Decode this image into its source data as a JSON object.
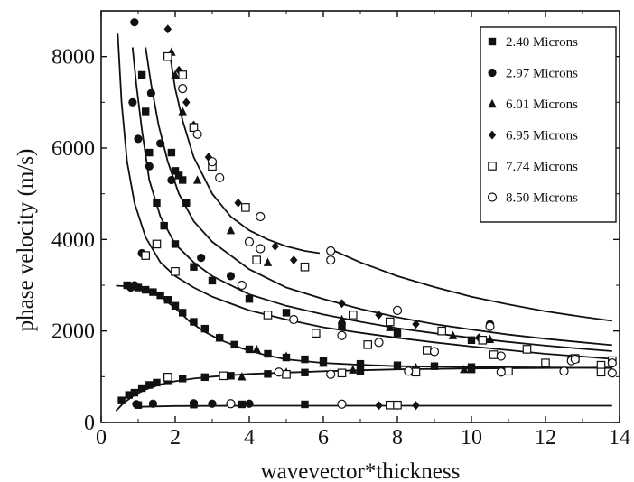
{
  "chart_data": {
    "type": "scatter",
    "title": "",
    "xlabel": "wavevector*thickness",
    "ylabel": "phase velocity (m/s)",
    "xlim": [
      0,
      14
    ],
    "ylim": [
      0,
      9000
    ],
    "xticks": [
      0,
      2,
      4,
      6,
      8,
      10,
      12,
      14
    ],
    "yticks": [
      0,
      2000,
      4000,
      6000,
      8000
    ],
    "grid": false,
    "legend_position": "top-right",
    "colors": {
      "ink": "#111111",
      "background": "#ffffff"
    },
    "legend": [
      {
        "name": "2.40 Microns",
        "marker": "filled-square"
      },
      {
        "name": "2.97 Microns",
        "marker": "filled-circle"
      },
      {
        "name": "6.01 Microns",
        "marker": "filled-triangle"
      },
      {
        "name": "6.95 Microns",
        "marker": "filled-diamond"
      },
      {
        "name": "7.74 Microns",
        "marker": "open-square"
      },
      {
        "name": "8.50 Microns",
        "marker": "open-circle"
      }
    ],
    "series": [
      {
        "name": "2.40 Microns",
        "marker": "filled-square",
        "points": [
          [
            0.55,
            480
          ],
          [
            0.75,
            600
          ],
          [
            0.9,
            650
          ],
          [
            1.1,
            750
          ],
          [
            1.3,
            820
          ],
          [
            1.5,
            870
          ],
          [
            1.8,
            920
          ],
          [
            2.2,
            960
          ],
          [
            2.8,
            990
          ],
          [
            3.5,
            1020
          ],
          [
            4.5,
            1060
          ],
          [
            5.5,
            1090
          ],
          [
            7,
            1120
          ],
          [
            8.5,
            1140
          ],
          [
            10,
            1160
          ],
          [
            0.7,
            3000
          ],
          [
            0.85,
            2980
          ],
          [
            1.0,
            2950
          ],
          [
            1.2,
            2900
          ],
          [
            1.4,
            2850
          ],
          [
            1.6,
            2780
          ],
          [
            1.8,
            2680
          ],
          [
            2.0,
            2550
          ],
          [
            2.2,
            2400
          ],
          [
            2.5,
            2200
          ],
          [
            2.8,
            2050
          ],
          [
            3.2,
            1850
          ],
          [
            3.6,
            1700
          ],
          [
            4.0,
            1600
          ],
          [
            4.5,
            1500
          ],
          [
            5,
            1420
          ],
          [
            5.5,
            1380
          ],
          [
            6,
            1340
          ],
          [
            7,
            1280
          ],
          [
            8,
            1250
          ],
          [
            9,
            1230
          ],
          [
            10,
            1210
          ],
          [
            1.1,
            7600
          ],
          [
            1.2,
            6800
          ],
          [
            1.3,
            5900
          ],
          [
            1.5,
            4800
          ],
          [
            1.7,
            4300
          ],
          [
            2.0,
            3900
          ],
          [
            2.5,
            3400
          ],
          [
            3.0,
            3100
          ],
          [
            4.0,
            2700
          ],
          [
            5.0,
            2400
          ],
          [
            6.5,
            2100
          ],
          [
            8,
            1950
          ],
          [
            10,
            1800
          ],
          [
            1.9,
            5900
          ],
          [
            2.0,
            5500
          ],
          [
            2.1,
            5400
          ],
          [
            2.2,
            5300
          ],
          [
            2.3,
            4800
          ],
          [
            1.0,
            380
          ],
          [
            2.5,
            390
          ],
          [
            3.8,
            395
          ],
          [
            5.5,
            395
          ]
        ]
      },
      {
        "name": "2.97 Microns",
        "marker": "filled-circle",
        "points": [
          [
            0.9,
            8750
          ],
          [
            1.35,
            7200
          ],
          [
            1.6,
            6100
          ],
          [
            1.9,
            5300
          ],
          [
            0.85,
            7000
          ],
          [
            1.0,
            6200
          ],
          [
            1.3,
            5600
          ],
          [
            1.1,
            3700
          ],
          [
            0.9,
            3000
          ],
          [
            0.8,
            2950
          ],
          [
            0.95,
            400
          ],
          [
            1.4,
            410
          ],
          [
            2.5,
            420
          ],
          [
            3,
            410
          ],
          [
            4,
            410
          ],
          [
            6.2,
            3750
          ],
          [
            8,
            2450
          ],
          [
            10.5,
            2150
          ],
          [
            12.7,
            1400
          ],
          [
            13.8,
            1350
          ],
          [
            2.7,
            3600
          ],
          [
            3.5,
            3200
          ]
        ]
      },
      {
        "name": "6.01 Microns",
        "marker": "filled-triangle",
        "points": [
          [
            1.9,
            8100
          ],
          [
            2.0,
            7600
          ],
          [
            2.2,
            6800
          ],
          [
            3.2,
            1850
          ],
          [
            4.2,
            1600
          ],
          [
            5.0,
            1450
          ],
          [
            6.0,
            1300
          ],
          [
            7.0,
            1220
          ],
          [
            8.5,
            1200
          ],
          [
            10,
            1170
          ],
          [
            6.5,
            2250
          ],
          [
            7.8,
            2080
          ],
          [
            9.5,
            1900
          ],
          [
            10.5,
            1820
          ],
          [
            4.5,
            3500
          ],
          [
            3.5,
            4200
          ],
          [
            2.6,
            5300
          ],
          [
            3.8,
            1000
          ],
          [
            5,
            1100
          ],
          [
            6.8,
            1150
          ],
          [
            9.8,
            1160
          ]
        ]
      },
      {
        "name": "6.95 Microns",
        "marker": "filled-diamond",
        "points": [
          [
            1.8,
            8600
          ],
          [
            2.1,
            7700
          ],
          [
            2.3,
            7000
          ],
          [
            2.5,
            6500
          ],
          [
            2.9,
            5800
          ],
          [
            3.7,
            4800
          ],
          [
            4.7,
            3850
          ],
          [
            5.2,
            3550
          ],
          [
            5.5,
            3400
          ],
          [
            6.5,
            2600
          ],
          [
            7.5,
            2350
          ],
          [
            8.5,
            2150
          ],
          [
            9.2,
            2000
          ],
          [
            10.2,
            1850
          ],
          [
            7.5,
            370
          ],
          [
            8.0,
            370
          ],
          [
            8.5,
            370
          ]
        ]
      },
      {
        "name": "7.74 Microns",
        "marker": "open-square",
        "points": [
          [
            1.8,
            8000
          ],
          [
            2.2,
            7600
          ],
          [
            2.5,
            6450
          ],
          [
            3.0,
            5600
          ],
          [
            3.9,
            4700
          ],
          [
            4.2,
            3550
          ],
          [
            5.5,
            3400
          ],
          [
            6.8,
            2350
          ],
          [
            7.8,
            2200
          ],
          [
            9.2,
            2000
          ],
          [
            10.3,
            1800
          ],
          [
            11.5,
            1600
          ],
          [
            12.8,
            1400
          ],
          [
            13.8,
            1350
          ],
          [
            1.2,
            3650
          ],
          [
            1.5,
            3900
          ],
          [
            2.0,
            3300
          ],
          [
            4.5,
            2350
          ],
          [
            5.8,
            1950
          ],
          [
            7.2,
            1700
          ],
          [
            8.8,
            1580
          ],
          [
            10.6,
            1480
          ],
          [
            12,
            1300
          ],
          [
            13.5,
            1250
          ],
          [
            1.8,
            990
          ],
          [
            3.3,
            1020
          ],
          [
            5,
            1050
          ],
          [
            6.5,
            1080
          ],
          [
            8.5,
            1100
          ],
          [
            11,
            1120
          ],
          [
            13.5,
            1100
          ],
          [
            7.8,
            380
          ],
          [
            8.0,
            380
          ]
        ]
      },
      {
        "name": "8.50 Microns",
        "marker": "open-circle",
        "points": [
          [
            2.2,
            7300
          ],
          [
            2.6,
            6300
          ],
          [
            3.0,
            5700
          ],
          [
            3.2,
            5350
          ],
          [
            4.0,
            3950
          ],
          [
            4.3,
            4500
          ],
          [
            4.3,
            3800
          ],
          [
            6.2,
            3750
          ],
          [
            6.2,
            3550
          ],
          [
            8.0,
            2450
          ],
          [
            10.5,
            2100
          ],
          [
            12.7,
            1350
          ],
          [
            13.8,
            1300
          ],
          [
            3.8,
            3000
          ],
          [
            5.2,
            2250
          ],
          [
            6.5,
            1900
          ],
          [
            7.5,
            1750
          ],
          [
            9.0,
            1550
          ],
          [
            10.8,
            1450
          ],
          [
            12.8,
            1380
          ],
          [
            4.8,
            1100
          ],
          [
            6.2,
            1050
          ],
          [
            8.3,
            1120
          ],
          [
            10.8,
            1100
          ],
          [
            12.5,
            1120
          ],
          [
            13.8,
            1080
          ],
          [
            6.5,
            400
          ],
          [
            3.5,
            410
          ]
        ]
      }
    ],
    "fit_curves": [
      {
        "points": [
          [
            0.4,
            250
          ],
          [
            0.6,
            420
          ],
          [
            0.9,
            600
          ],
          [
            1.2,
            720
          ],
          [
            1.6,
            830
          ],
          [
            2.0,
            900
          ],
          [
            2.5,
            960
          ],
          [
            3,
            1000
          ],
          [
            4,
            1060
          ],
          [
            5,
            1090
          ],
          [
            6,
            1120
          ],
          [
            8,
            1160
          ],
          [
            10,
            1180
          ],
          [
            12,
            1190
          ],
          [
            13.8,
            1200
          ]
        ]
      },
      {
        "points": [
          [
            0.4,
            2990
          ],
          [
            0.8,
            2970
          ],
          [
            1.2,
            2900
          ],
          [
            1.6,
            2750
          ],
          [
            2.0,
            2500
          ],
          [
            2.4,
            2200
          ],
          [
            2.8,
            1980
          ],
          [
            3.2,
            1810
          ],
          [
            3.8,
            1620
          ],
          [
            4.4,
            1480
          ],
          [
            5,
            1380
          ],
          [
            6,
            1300
          ],
          [
            7,
            1260
          ],
          [
            8,
            1230
          ],
          [
            10,
            1210
          ],
          [
            12,
            1200
          ],
          [
            13.8,
            1190
          ]
        ]
      },
      {
        "points": [
          [
            0.45,
            8500
          ],
          [
            0.55,
            7000
          ],
          [
            0.7,
            5700
          ],
          [
            0.9,
            4800
          ],
          [
            1.2,
            4050
          ],
          [
            1.6,
            3500
          ],
          [
            2,
            3200
          ],
          [
            2.5,
            2950
          ],
          [
            3,
            2750
          ],
          [
            4,
            2450
          ],
          [
            5,
            2250
          ],
          [
            6,
            2080
          ],
          [
            7,
            1960
          ],
          [
            8,
            1850
          ],
          [
            9,
            1750
          ],
          [
            10,
            1660
          ],
          [
            11,
            1580
          ],
          [
            12,
            1500
          ],
          [
            13,
            1440
          ],
          [
            13.8,
            1390
          ]
        ]
      },
      {
        "points": [
          [
            0.85,
            8200
          ],
          [
            0.95,
            7400
          ],
          [
            1.1,
            6400
          ],
          [
            1.3,
            5300
          ],
          [
            1.6,
            4500
          ],
          [
            2,
            3900
          ],
          [
            2.5,
            3500
          ],
          [
            3,
            3200
          ],
          [
            4,
            2800
          ],
          [
            5,
            2550
          ],
          [
            6,
            2360
          ],
          [
            7,
            2200
          ],
          [
            8,
            2060
          ],
          [
            9,
            1950
          ],
          [
            10,
            1850
          ],
          [
            11,
            1760
          ],
          [
            12,
            1680
          ],
          [
            13,
            1610
          ],
          [
            13.8,
            1560
          ]
        ]
      },
      {
        "points": [
          [
            1.2,
            8200
          ],
          [
            1.35,
            7400
          ],
          [
            1.55,
            6500
          ],
          [
            1.8,
            5700
          ],
          [
            2.1,
            5000
          ],
          [
            2.5,
            4400
          ],
          [
            3,
            3950
          ],
          [
            4,
            3350
          ],
          [
            5,
            2950
          ],
          [
            6,
            2700
          ],
          [
            7,
            2480
          ],
          [
            8,
            2300
          ],
          [
            9,
            2150
          ],
          [
            10,
            2030
          ],
          [
            11,
            1920
          ],
          [
            12,
            1830
          ],
          [
            13,
            1750
          ],
          [
            13.8,
            1690
          ]
        ]
      },
      {
        "points": [
          [
            1.85,
            8100
          ],
          [
            2.0,
            7300
          ],
          [
            2.2,
            6600
          ],
          [
            2.5,
            5800
          ],
          [
            3,
            5000
          ],
          [
            3.5,
            4500
          ],
          [
            4,
            4200
          ],
          [
            4.5,
            4000
          ],
          [
            5,
            3850
          ],
          [
            5.5,
            3750
          ],
          [
            5.9,
            3700
          ]
        ]
      },
      {
        "points": [
          [
            6.3,
            3750
          ],
          [
            7,
            3500
          ],
          [
            8,
            3200
          ],
          [
            9,
            2960
          ],
          [
            10,
            2750
          ],
          [
            11,
            2580
          ],
          [
            12,
            2430
          ],
          [
            13,
            2310
          ],
          [
            13.8,
            2220
          ]
        ]
      },
      {
        "points": [
          [
            0.9,
            340
          ],
          [
            2,
            360
          ],
          [
            4,
            365
          ],
          [
            6,
            365
          ],
          [
            8,
            365
          ],
          [
            10,
            365
          ],
          [
            12,
            365
          ],
          [
            13.8,
            365
          ]
        ]
      }
    ]
  }
}
